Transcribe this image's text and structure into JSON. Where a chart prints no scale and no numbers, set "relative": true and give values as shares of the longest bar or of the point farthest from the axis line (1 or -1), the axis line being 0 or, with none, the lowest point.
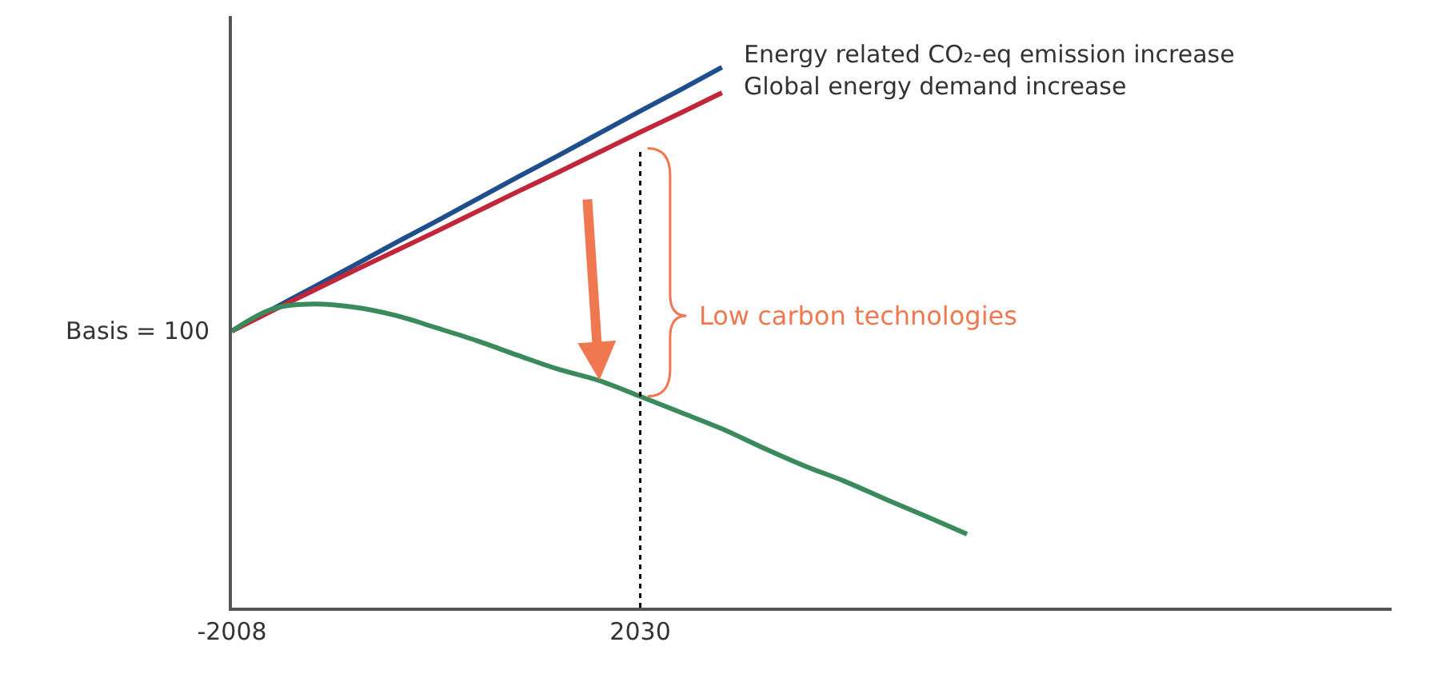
{
  "chart_data": {
    "type": "line",
    "relative": true,
    "legend": false,
    "marker": "none",
    "line_style": "solid",
    "categories": [
      "-2008",
      null,
      null,
      null,
      null,
      null,
      null,
      null,
      null,
      null,
      "2030",
      null,
      null,
      null,
      null,
      null,
      null,
      null,
      null,
      null,
      null,
      null,
      null,
      null,
      null,
      null,
      null,
      null,
      null
    ],
    "series": [
      {
        "name": "Energy related CO₂-eq emission increase",
        "color": "#1f4e8c",
        "values": [
          0.512,
          0.553,
          0.593,
          0.634,
          0.675,
          0.715,
          0.756,
          0.797,
          0.837,
          0.878,
          0.919,
          0.959,
          1,
          null,
          null,
          null,
          null,
          null,
          null,
          null,
          null,
          null,
          null,
          null,
          null,
          null,
          null,
          null,
          null
        ]
      },
      {
        "name": "Global energy demand increase",
        "color": "#c0273a",
        "values": [
          0.512,
          0.55,
          0.587,
          0.624,
          0.66,
          0.696,
          0.733,
          0.77,
          0.806,
          0.843,
          0.88,
          0.916,
          0.953,
          null,
          null,
          null,
          null,
          null,
          null,
          null,
          null,
          null,
          null,
          null,
          null,
          null,
          null,
          null,
          null
        ]
      },
      {
        "color": "#3a8a5c",
        "values": [
          0.512,
          0.553,
          0.562,
          0.556,
          0.541,
          0.518,
          0.494,
          0.467,
          0.441,
          0.42,
          0.391,
          0.361,
          0.331,
          0.296,
          0.263,
          0.234,
          0.201,
          0.169,
          0.136,
          null,
          null,
          null,
          null,
          null,
          null,
          null,
          null,
          null,
          null
        ]
      }
    ],
    "ref_lines": [
      {
        "axis": "x",
        "value": "2030",
        "color": "#000000",
        "line_style": "dotted"
      }
    ],
    "annotations": [
      "Basis = 100",
      {
        "text": "Low carbon technologies",
        "x": "2030",
        "y": 0.54
      }
    ]
  }
}
